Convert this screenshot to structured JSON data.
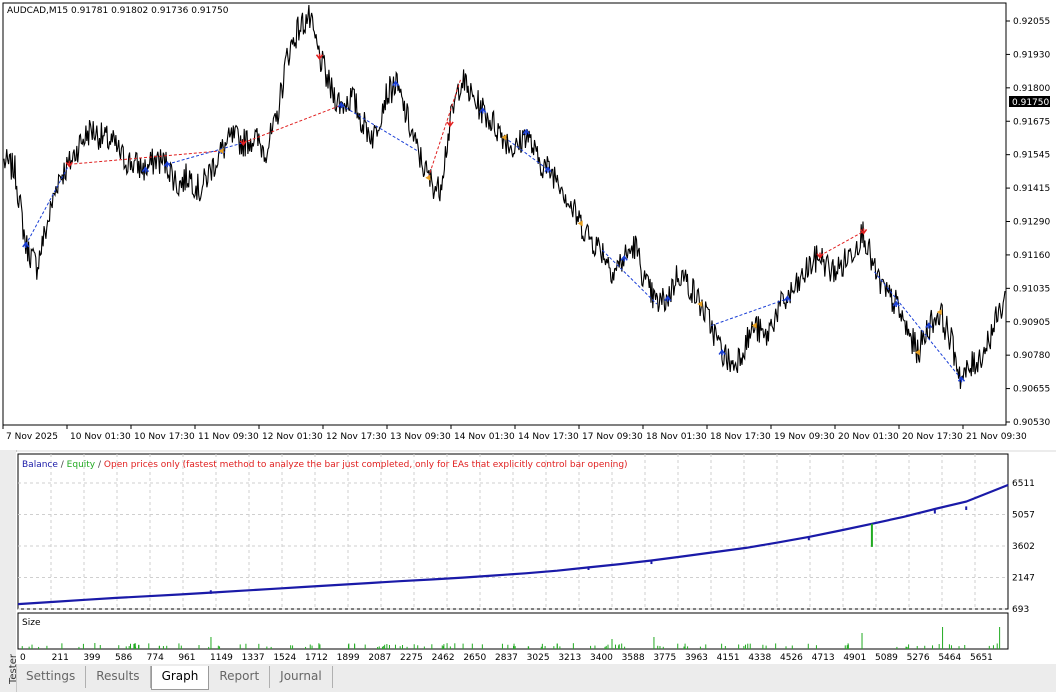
{
  "chart_header": "AUDCAD,M15  0.91781 0.91802 0.91736 0.91750",
  "price_axis": [
    "0.92055",
    "0.91930",
    "0.91800",
    "0.91675",
    "0.91545",
    "0.91415",
    "0.91290",
    "0.91160",
    "0.91035",
    "0.90905",
    "0.90780",
    "0.90655",
    "0.90530"
  ],
  "current_price": "0.91750",
  "time_axis": [
    "7 Nov 2025",
    "10 Nov 01:30",
    "10 Nov 17:30",
    "11 Nov 09:30",
    "12 Nov 01:30",
    "12 Nov 17:30",
    "13 Nov 09:30",
    "14 Nov 01:30",
    "14 Nov 17:30",
    "17 Nov 09:30",
    "18 Nov 01:30",
    "18 Nov 17:30",
    "19 Nov 09:30",
    "20 Nov 01:30",
    "20 Nov 17:30",
    "21 Nov 09:30"
  ],
  "colors": {
    "price_line": "#000000",
    "buy": "#1a3fd6",
    "sell": "#e02020",
    "close": "#e8a020",
    "balance": "#1a1aa8",
    "equity": "#22aa22",
    "legend_note": "#e02020",
    "current_price_bg": "#000000"
  },
  "legend": {
    "balance": "Balance",
    "sep1": " / ",
    "equity": "Equity",
    "sep2": " / ",
    "note": "Open prices only (fastest method to analyze the bar just completed, only for EAs that explicitly control bar opening)"
  },
  "balance_axis": [
    "6511",
    "5057",
    "3602",
    "2147",
    "693"
  ],
  "size_label": "Size",
  "trade_axis": [
    "0",
    "211",
    "399",
    "586",
    "774",
    "961",
    "1149",
    "1337",
    "1524",
    "1712",
    "1899",
    "2087",
    "2275",
    "2462",
    "2650",
    "2837",
    "3025",
    "3213",
    "3400",
    "3588",
    "3775",
    "3963",
    "4151",
    "4338",
    "4526",
    "4713",
    "4901",
    "5089",
    "5276",
    "5464",
    "5651"
  ],
  "tester_label": "Tester",
  "tabs": [
    "Settings",
    "Results",
    "Graph",
    "Report",
    "Journal"
  ],
  "active_tab": "Graph",
  "chart_data": [
    {
      "type": "line",
      "title": "AUDCAD,M15  0.91781 0.91802 0.91736 0.91750",
      "x_tick_labels": [
        "7 Nov 2025",
        "10 Nov 01:30",
        "10 Nov 17:30",
        "11 Nov 09:30",
        "12 Nov 01:30",
        "12 Nov 17:30",
        "13 Nov 09:30",
        "14 Nov 01:30",
        "14 Nov 17:30",
        "17 Nov 09:30",
        "18 Nov 01:30",
        "18 Nov 17:30",
        "19 Nov 09:30",
        "20 Nov 01:30",
        "20 Nov 17:30",
        "21 Nov 09:30"
      ],
      "ylim": [
        0.9053,
        0.921
      ],
      "series": [
        {
          "values": [
            0.9151,
            0.9148,
            0.912,
            0.9112,
            0.9128,
            0.9145,
            0.915,
            0.9158,
            0.9163,
            0.916,
            0.9158,
            0.9152,
            0.915,
            0.9148,
            0.9152,
            0.915,
            0.9142,
            0.9146,
            0.914,
            0.9148,
            0.9155,
            0.916,
            0.9158,
            0.916,
            0.9155,
            0.9165,
            0.919,
            0.92,
            0.9205,
            0.919,
            0.9178,
            0.9172,
            0.9175,
            0.9165,
            0.916,
            0.9175,
            0.918,
            0.9168,
            0.9155,
            0.9145,
            0.914,
            0.9165,
            0.9182,
            0.9175,
            0.917,
            0.9165,
            0.916,
            0.9155,
            0.9162,
            0.9152,
            0.9148,
            0.9145,
            0.9135,
            0.9128,
            0.9122,
            0.9118,
            0.911,
            0.9115,
            0.912,
            0.9105,
            0.9098,
            0.91,
            0.911,
            0.9105,
            0.9098,
            0.909,
            0.908,
            0.9075,
            0.9082,
            0.909,
            0.9085,
            0.9095,
            0.91,
            0.9105,
            0.9112,
            0.9116,
            0.911,
            0.9112,
            0.9118,
            0.9125,
            0.911,
            0.9102,
            0.9098,
            0.9088,
            0.908,
            0.909,
            0.9095,
            0.9085,
            0.907,
            0.9075,
            0.908,
            0.909,
            0.91
          ]
        }
      ],
      "trade_markers": {
        "buy": 16,
        "sell": 6,
        "close": 8
      }
    },
    {
      "type": "line",
      "x_tick_labels": [
        "0",
        "211",
        "399",
        "586",
        "774",
        "961",
        "1149",
        "1337",
        "1524",
        "1712",
        "1899",
        "2087",
        "2275",
        "2462",
        "2650",
        "2837",
        "3025",
        "3213",
        "3400",
        "3588",
        "3775",
        "3963",
        "4151",
        "4338",
        "4526",
        "4713",
        "4901",
        "5089",
        "5276",
        "5464",
        "5651"
      ],
      "xlim": [
        0,
        5900
      ],
      "ylim": [
        693,
        7200
      ],
      "series": [
        {
          "name": "Balance",
          "x": [
            0,
            211,
            399,
            586,
            774,
            961,
            1149,
            1337,
            1524,
            1712,
            1899,
            2087,
            2275,
            2462,
            2650,
            2837,
            3025,
            3213,
            3400,
            3588,
            3775,
            3963,
            4151,
            4338,
            4526,
            4713,
            4901,
            5089,
            5276,
            5464,
            5651,
            5900
          ],
          "values": [
            900,
            990,
            1080,
            1160,
            1230,
            1300,
            1380,
            1460,
            1540,
            1620,
            1700,
            1780,
            1860,
            1930,
            2010,
            2100,
            2190,
            2300,
            2440,
            2580,
            2730,
            2900,
            3080,
            3260,
            3480,
            3720,
            3990,
            4270,
            4560,
            4890,
            5200,
            5900
          ]
        },
        {
          "name": "Equity",
          "x": [
            5089,
            5089,
            5651
          ],
          "values": [
            4270,
            3300,
            5200
          ]
        }
      ]
    },
    {
      "type": "bar",
      "title": "Size",
      "x_tick_labels": [
        "0",
        "211",
        "399",
        "586",
        "774",
        "961",
        "1149",
        "1337",
        "1524",
        "1712",
        "1899",
        "2087",
        "2275",
        "2462",
        "2650",
        "2837",
        "3025",
        "3213",
        "3400",
        "3588",
        "3775",
        "3963",
        "4151",
        "4338",
        "4526",
        "4713",
        "4901",
        "5089",
        "5276",
        "5464",
        "5651"
      ]
    }
  ]
}
